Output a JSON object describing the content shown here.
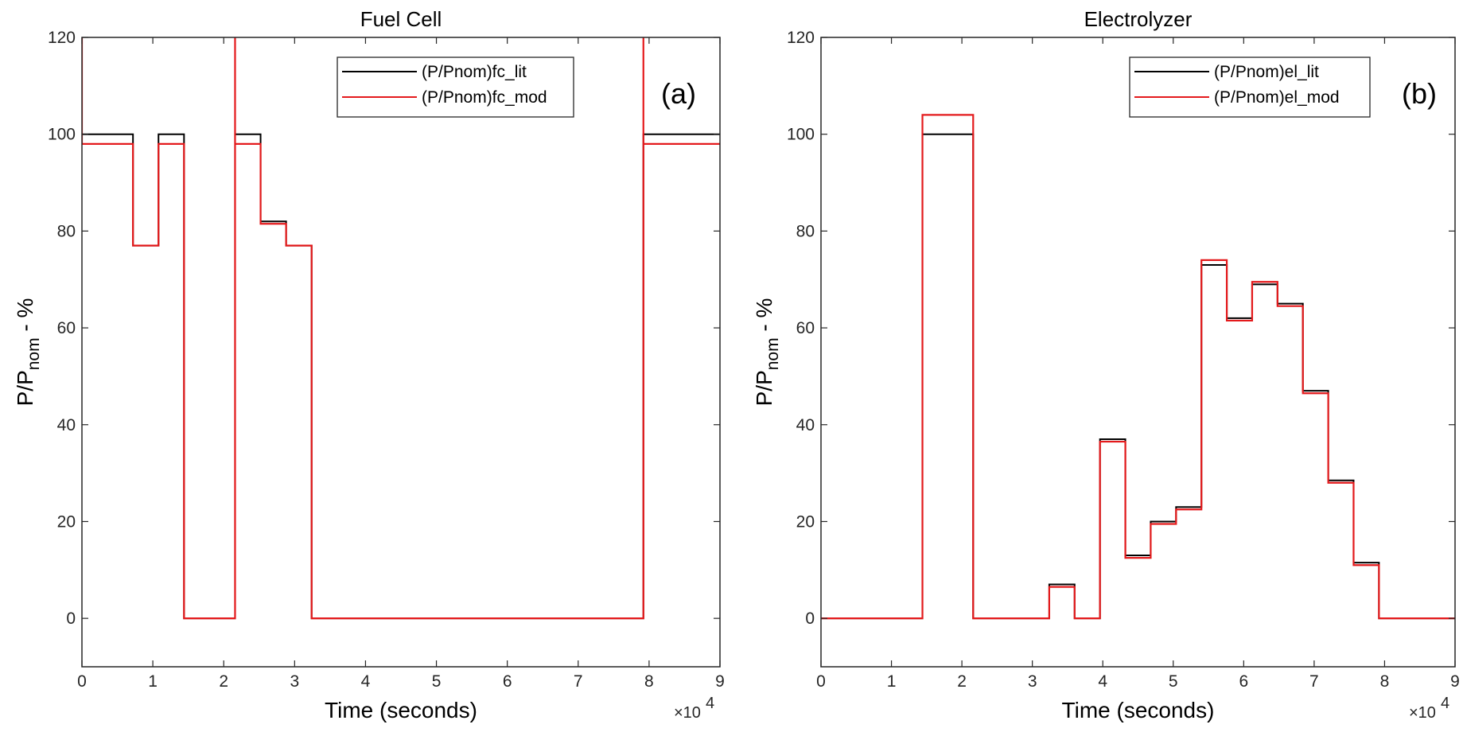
{
  "chart_data": [
    {
      "type": "line",
      "panel_label": "(a)",
      "title": "Fuel Cell",
      "xlabel": "Time (seconds)",
      "ylabel_main": "P/P",
      "ylabel_sub": "nom",
      "ylabel_tail": " - %",
      "x_multiplier": "×10",
      "x_multiplier_exp": "4",
      "xlim": [
        0,
        90000
      ],
      "ylim": [
        -10,
        120
      ],
      "x_ticks": [
        "0",
        "1",
        "2",
        "3",
        "4",
        "5",
        "6",
        "7",
        "8",
        "9"
      ],
      "y_ticks": [
        "0",
        "20",
        "40",
        "60",
        "80",
        "100",
        "120"
      ],
      "grid": false,
      "legend_placement": "top-right",
      "series": [
        {
          "name": "(P/Pnom)fc_lit",
          "color": "#000000",
          "x": [
            0,
            7200,
            7200,
            10800,
            10800,
            14400,
            14400,
            21600,
            21600,
            25200,
            25200,
            28800,
            28800,
            32400,
            32400,
            79200,
            79200,
            90000
          ],
          "y": [
            100,
            100,
            77,
            77,
            100,
            100,
            0,
            0,
            100,
            100,
            82,
            82,
            77,
            77,
            0,
            0,
            100,
            100
          ]
        },
        {
          "name": "(P/Pnom)fc_mod",
          "color": "#e41a1c",
          "x": [
            0,
            0,
            0,
            7200,
            7200,
            10800,
            10800,
            14400,
            14400,
            21600,
            21600,
            21600,
            25200,
            25200,
            28800,
            28800,
            32400,
            32400,
            79200,
            79200,
            79200,
            90000
          ],
          "y": [
            120,
            120,
            98,
            98,
            77,
            77,
            98,
            98,
            0,
            0,
            120,
            98,
            98,
            81.5,
            81.5,
            77,
            77,
            0,
            0,
            120,
            98,
            98
          ]
        }
      ]
    },
    {
      "type": "line",
      "panel_label": "(b)",
      "title": "Electrolyzer",
      "xlabel": "Time (seconds)",
      "ylabel_main": "P/P",
      "ylabel_sub": "nom",
      "ylabel_tail": " - %",
      "x_multiplier": "×10",
      "x_multiplier_exp": "4",
      "xlim": [
        0,
        90000
      ],
      "ylim": [
        -10,
        120
      ],
      "x_ticks": [
        "0",
        "1",
        "2",
        "3",
        "4",
        "5",
        "6",
        "7",
        "8",
        "9"
      ],
      "y_ticks": [
        "0",
        "20",
        "40",
        "60",
        "80",
        "100",
        "120"
      ],
      "grid": false,
      "legend_placement": "top-right",
      "series": [
        {
          "name": "(P/Pnom)el_lit",
          "color": "#000000",
          "x": [
            0,
            14400,
            14400,
            21600,
            21600,
            32400,
            32400,
            36000,
            36000,
            39600,
            39600,
            43200,
            43200,
            46800,
            46800,
            50400,
            50400,
            54000,
            54000,
            57600,
            57600,
            61200,
            61200,
            64800,
            64800,
            68400,
            68400,
            72000,
            72000,
            75600,
            75600,
            79200,
            79200,
            90000
          ],
          "y": [
            0,
            0,
            100,
            100,
            0,
            0,
            7,
            7,
            0,
            0,
            37,
            37,
            13,
            13,
            20,
            20,
            23,
            23,
            73,
            73,
            62,
            62,
            69,
            69,
            65,
            65,
            47,
            47,
            28.5,
            28.5,
            11.5,
            11.5,
            0,
            0
          ]
        },
        {
          "name": "(P/Pnom)el_mod",
          "color": "#e41a1c",
          "x": [
            0,
            14400,
            14400,
            21600,
            21600,
            32400,
            32400,
            36000,
            36000,
            39600,
            39600,
            43200,
            43200,
            46800,
            46800,
            50400,
            50400,
            54000,
            54000,
            57600,
            57600,
            61200,
            61200,
            64800,
            64800,
            68400,
            68400,
            72000,
            72000,
            75600,
            75600,
            79200,
            79200,
            90000
          ],
          "y": [
            0,
            0,
            104,
            104,
            0,
            0,
            6.5,
            6.5,
            0,
            0,
            36.5,
            36.5,
            12.5,
            12.5,
            19.5,
            19.5,
            22.5,
            22.5,
            74,
            74,
            61.5,
            61.5,
            69.5,
            69.5,
            64.5,
            64.5,
            46.5,
            46.5,
            28,
            28,
            11,
            11,
            0,
            0
          ]
        }
      ]
    }
  ]
}
